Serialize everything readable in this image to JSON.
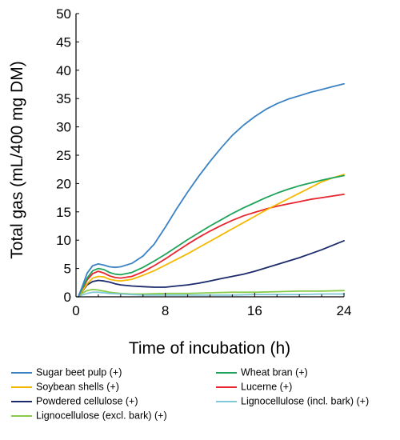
{
  "chart_data": {
    "type": "line",
    "title": "",
    "xlabel": "Time of incubation (h)",
    "ylabel": "Total gas (mL/400 mg DM)",
    "xlim": [
      0,
      24
    ],
    "ylim": [
      0,
      50
    ],
    "x_ticks": [
      "0",
      "8",
      "16",
      "24"
    ],
    "y_ticks": [
      "0",
      "5",
      "10",
      "15",
      "20",
      "25",
      "30",
      "35",
      "40",
      "45",
      "50"
    ],
    "grid": false,
    "legend_position": "bottom",
    "series": [
      {
        "name": "Sugar beet pulp (+)",
        "color": "#3B82C4",
        "x": [
          0.2,
          0.5,
          1,
          1.5,
          2,
          2.5,
          3,
          3.5,
          4,
          5,
          6,
          7,
          8,
          9,
          10,
          11,
          12,
          13,
          14,
          15,
          16,
          17,
          18,
          19,
          20,
          21,
          22,
          23,
          24
        ],
        "y": [
          0,
          1.5,
          4.2,
          5.5,
          5.8,
          5.6,
          5.3,
          5.2,
          5.3,
          5.9,
          7.2,
          9.3,
          12.3,
          15.5,
          18.5,
          21.3,
          23.9,
          26.3,
          28.5,
          30.3,
          31.8,
          33.1,
          34.1,
          34.9,
          35.5,
          36.1,
          36.6,
          37.1,
          37.6
        ]
      },
      {
        "name": "Wheat bran (+)",
        "color": "#1FA35A",
        "x": [
          0.2,
          0.5,
          1,
          1.5,
          2,
          2.5,
          3,
          3.5,
          4,
          5,
          6,
          7,
          8,
          9,
          10,
          11,
          12,
          13,
          14,
          15,
          16,
          17,
          18,
          19,
          20,
          21,
          22,
          23,
          24
        ],
        "y": [
          0,
          1.2,
          3.3,
          4.6,
          5.0,
          4.8,
          4.3,
          4.0,
          3.9,
          4.3,
          5.2,
          6.3,
          7.5,
          8.8,
          10.1,
          11.3,
          12.5,
          13.6,
          14.7,
          15.7,
          16.6,
          17.5,
          18.3,
          19.0,
          19.6,
          20.1,
          20.6,
          21.0,
          21.4
        ]
      },
      {
        "name": "Soybean shells (+)",
        "color": "#F5B800",
        "x": [
          0.2,
          0.5,
          1,
          1.5,
          2,
          2.5,
          3,
          3.5,
          4,
          5,
          6,
          7,
          8,
          9,
          10,
          11,
          12,
          13,
          14,
          15,
          16,
          17,
          18,
          19,
          20,
          21,
          22,
          23,
          24
        ],
        "y": [
          0,
          0.8,
          2.3,
          3.3,
          3.6,
          3.5,
          3.1,
          2.9,
          2.8,
          3.1,
          3.8,
          4.6,
          5.6,
          6.6,
          7.6,
          8.7,
          9.8,
          10.9,
          12.0,
          13.1,
          14.2,
          15.3,
          16.3,
          17.3,
          18.3,
          19.3,
          20.3,
          21.0,
          21.6
        ]
      },
      {
        "name": "Lucerne (+)",
        "color": "#E8242E",
        "x": [
          0.2,
          0.5,
          1,
          1.5,
          2,
          2.5,
          3,
          3.5,
          4,
          5,
          6,
          7,
          8,
          9,
          10,
          11,
          12,
          13,
          14,
          15,
          16,
          17,
          18,
          19,
          20,
          21,
          22,
          23,
          24
        ],
        "y": [
          0,
          1.0,
          3.0,
          4.1,
          4.5,
          4.2,
          3.7,
          3.4,
          3.3,
          3.6,
          4.4,
          5.5,
          6.7,
          8.0,
          9.3,
          10.5,
          11.6,
          12.6,
          13.5,
          14.3,
          14.9,
          15.5,
          16.0,
          16.4,
          16.8,
          17.2,
          17.5,
          17.8,
          18.1
        ]
      },
      {
        "name": "Powdered cellulose (+)",
        "color": "#1B2A6B",
        "x": [
          0.2,
          0.5,
          1,
          1.5,
          2,
          2.5,
          3,
          3.5,
          4,
          5,
          6,
          7,
          8,
          9,
          10,
          11,
          12,
          13,
          14,
          15,
          16,
          17,
          18,
          19,
          20,
          21,
          22,
          23,
          24
        ],
        "y": [
          0,
          0.8,
          2.1,
          2.7,
          2.9,
          2.8,
          2.6,
          2.3,
          2.1,
          1.9,
          1.8,
          1.7,
          1.7,
          1.9,
          2.1,
          2.4,
          2.8,
          3.2,
          3.6,
          4.0,
          4.5,
          5.1,
          5.7,
          6.3,
          6.9,
          7.6,
          8.3,
          9.1,
          9.9
        ]
      },
      {
        "name": "Lignocellulose (incl. bark) (+)",
        "color": "#7FC8D8",
        "x": [
          0.2,
          0.5,
          1,
          1.5,
          2,
          2.5,
          3,
          4,
          5,
          6,
          8,
          10,
          12,
          14,
          16,
          18,
          20,
          22,
          24
        ],
        "y": [
          0,
          0.3,
          0.6,
          0.8,
          0.8,
          0.7,
          0.6,
          0.5,
          0.4,
          0.3,
          0.3,
          0.3,
          0.3,
          0.3,
          0.4,
          0.4,
          0.4,
          0.5,
          0.5
        ]
      },
      {
        "name": "Lignocellulose (excl. bark) (+)",
        "color": "#86CC4A",
        "x": [
          0.2,
          0.5,
          1,
          1.5,
          2,
          2.5,
          3,
          4,
          5,
          6,
          8,
          10,
          12,
          14,
          16,
          18,
          20,
          22,
          24
        ],
        "y": [
          0,
          0.6,
          1.1,
          1.3,
          1.2,
          1.0,
          0.8,
          0.6,
          0.5,
          0.5,
          0.6,
          0.6,
          0.7,
          0.8,
          0.8,
          0.9,
          1.0,
          1.0,
          1.1
        ]
      }
    ]
  },
  "legend": {
    "columns": [
      [
        "Sugar beet pulp (+)",
        "Soybean shells (+)",
        "Powdered cellulose (+)",
        "Lignocellulose (excl. bark) (+)"
      ],
      [
        "Wheat bran (+)",
        "Lucerne (+)",
        "Lignocellulose (incl. bark) (+)"
      ]
    ]
  }
}
